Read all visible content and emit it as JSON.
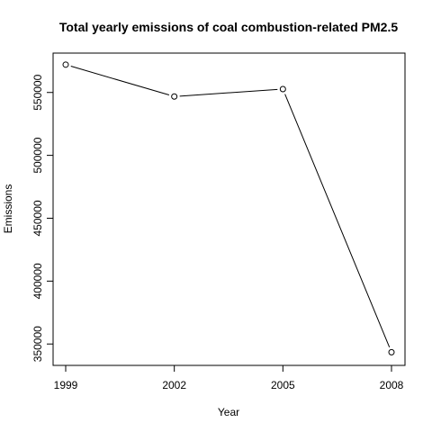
{
  "chart_data": {
    "type": "line",
    "title": "Total yearly emissions of coal combustion-related PM2.5",
    "xlabel": "Year",
    "ylabel": "Emissions",
    "x": [
      1999,
      2002,
      2005,
      2008
    ],
    "xticks": [
      "1999",
      "2002",
      "2005",
      "2008"
    ],
    "yticks": [
      350000,
      400000,
      450000,
      500000,
      550000
    ],
    "ytick_labels": [
      "350000",
      "400000",
      "450000",
      "500000",
      "550000"
    ],
    "xlim": [
      1999,
      2008
    ],
    "ylim": [
      343000,
      572000
    ],
    "series": [
      {
        "values": [
          572127,
          546789,
          552675,
          343432
        ]
      }
    ],
    "grid": false,
    "legend": "none",
    "marker": "open-circle",
    "line_color": "#000000"
  }
}
